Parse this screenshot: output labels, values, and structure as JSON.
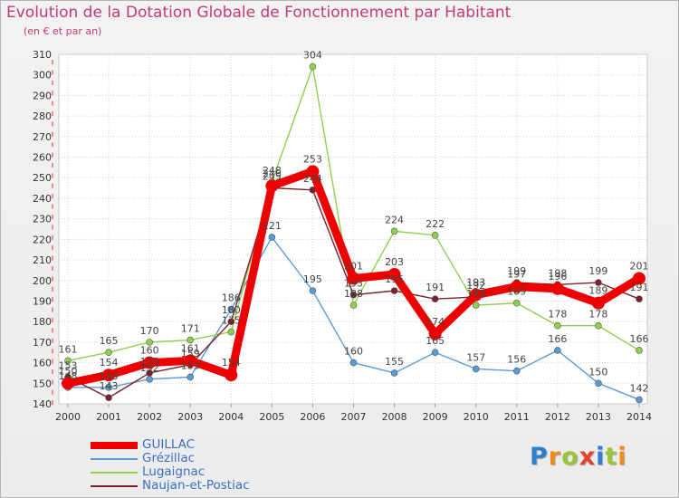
{
  "chart_data": {
    "type": "line",
    "title": "Evolution de la Dotation Globale de Fonctionnement par Habitant",
    "subtitle": "(en € et par an)",
    "xlabel": "",
    "ylabel": "",
    "ylim": [
      140,
      310
    ],
    "yticks": [
      140,
      150,
      160,
      170,
      180,
      190,
      200,
      210,
      220,
      230,
      240,
      250,
      260,
      270,
      280,
      290,
      300,
      310
    ],
    "x": [
      "2000",
      "2001",
      "2002",
      "2003",
      "2004",
      "2005",
      "2006",
      "2007",
      "2008",
      "2009",
      "2010",
      "2011",
      "2012",
      "2013",
      "2014"
    ],
    "grid": true,
    "legend_position": "bottom-left",
    "series": [
      {
        "name": "Grézillac",
        "color": "#5b9bd5",
        "values": [
          148,
          148,
          152,
          153,
          186,
          221,
          195,
          160,
          155,
          165,
          157,
          156,
          166,
          150,
          142
        ]
      },
      {
        "name": "Lugaignac",
        "color": "#8fd14f",
        "values": [
          161,
          165,
          170,
          171,
          175,
          248,
          304,
          188,
          224,
          222,
          188,
          189,
          178,
          178,
          166
        ]
      },
      {
        "name": "Naujan-et-Postiac",
        "color": "#7b1f2a",
        "values": [
          153,
          143,
          155,
          159,
          180,
          245,
          244,
          193,
          195,
          191,
          192,
          199,
          198,
          199,
          191
        ]
      },
      {
        "name": "GUILLAC",
        "color": "#ee0000",
        "values": [
          150,
          154,
          160,
          161,
          154,
          246,
          253,
          201,
          203,
          174,
          193,
          197,
          196,
          189,
          201
        ]
      }
    ]
  },
  "logo": {
    "text": "Proxiti",
    "letters": [
      "P",
      "r",
      "o",
      "x",
      "i",
      "t",
      "i"
    ]
  }
}
